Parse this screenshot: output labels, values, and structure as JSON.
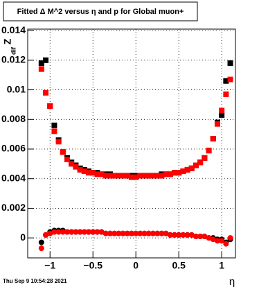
{
  "chart_data": {
    "type": "scatter",
    "title": "Fitted Δ M^2 versus η and p for Global muon+",
    "xlabel": "η",
    "ylabel": "Z",
    "ylabel_subscript": "dif",
    "footer": "Thu Sep  9 10:54:28 2021",
    "xlim": [
      -1.26,
      1.16
    ],
    "ylim": [
      -0.00135,
      0.0141
    ],
    "xticks": [
      {
        "value": -1,
        "label": "−1"
      },
      {
        "value": -0.5,
        "label": "−0.5"
      },
      0,
      0.5,
      1
    ],
    "yticks": [
      0,
      0.002,
      0.004,
      0.006,
      0.008,
      0.01,
      0.012,
      0.014
    ],
    "grid": true,
    "x": [
      -1.1,
      -1.05,
      -1.0,
      -0.95,
      -0.9,
      -0.85,
      -0.8,
      -0.75,
      -0.7,
      -0.65,
      -0.6,
      -0.55,
      -0.5,
      -0.45,
      -0.4,
      -0.35,
      -0.3,
      -0.25,
      -0.2,
      -0.15,
      -0.1,
      -0.05,
      0,
      0.05,
      0.1,
      0.15,
      0.2,
      0.25,
      0.3,
      0.35,
      0.4,
      0.45,
      0.5,
      0.55,
      0.6,
      0.65,
      0.7,
      0.75,
      0.8,
      0.85,
      0.9,
      0.95,
      1.0,
      1.05,
      1.1
    ],
    "series": [
      {
        "color": "#000000",
        "marker": "square",
        "values": [
          0.0118,
          0.012,
          0.0089,
          0.0076,
          0.0066,
          0.0058,
          0.0054,
          0.0051,
          0.0049,
          0.0047,
          0.0046,
          0.0045,
          0.0044,
          0.0044,
          0.0043,
          0.0043,
          0.0043,
          0.0042,
          0.0042,
          0.0042,
          0.0042,
          0.0042,
          0.0042,
          0.0042,
          0.0042,
          0.0042,
          0.0042,
          0.0042,
          0.0043,
          0.0043,
          0.0043,
          0.0044,
          0.0044,
          0.0045,
          0.0046,
          0.0047,
          0.0049,
          0.0051,
          0.0054,
          0.0059,
          0.0067,
          0.0078,
          0.0083,
          0.0106,
          0.0118
        ]
      },
      {
        "color": "#ff0000",
        "marker": "square",
        "values": [
          0.0114,
          0.0098,
          0.0089,
          0.0072,
          0.0065,
          0.0058,
          0.0053,
          0.005,
          0.0048,
          0.0046,
          0.0045,
          0.0044,
          0.0044,
          0.0043,
          0.0043,
          0.0042,
          0.0042,
          0.0042,
          0.0042,
          0.0042,
          0.0042,
          0.0041,
          0.0041,
          0.0042,
          0.0042,
          0.0042,
          0.0042,
          0.0042,
          0.0042,
          0.0043,
          0.0043,
          0.0044,
          0.0044,
          0.0045,
          0.0046,
          0.0047,
          0.0049,
          0.0051,
          0.0054,
          0.0059,
          0.0067,
          0.0077,
          0.0086,
          0.0097,
          0.0107
        ]
      },
      {
        "color": "#000000",
        "marker": "circle",
        "values": [
          -0.0003,
          0.0002,
          0.0004,
          0.0005,
          0.0005,
          0.0005,
          0.0004,
          0.0004,
          0.0004,
          0.0004,
          0.0004,
          0.0004,
          0.0004,
          0.0004,
          0.0004,
          0.0003,
          0.0003,
          0.0003,
          0.0003,
          0.0003,
          0.0003,
          0.0003,
          0.0003,
          0.0003,
          0.0003,
          0.0003,
          0.0003,
          0.0003,
          0.0003,
          0.0003,
          0.0002,
          0.0002,
          0.0002,
          0.0002,
          0.0002,
          0.0002,
          0.0001,
          0.0001,
          0.0001,
          0.0,
          0.0,
          -0.0001,
          -0.0001,
          -0.0003,
          -0.0001
        ]
      },
      {
        "color": "#ff0000",
        "marker": "circle",
        "values": [
          -0.0007,
          0.0002,
          0.0003,
          0.0004,
          0.0004,
          0.0004,
          0.0004,
          0.0004,
          0.0004,
          0.0004,
          0.0004,
          0.0004,
          0.0004,
          0.0004,
          0.0004,
          0.0003,
          0.0003,
          0.0003,
          0.0003,
          0.0003,
          0.0003,
          0.0003,
          0.0003,
          0.0003,
          0.0003,
          0.0003,
          0.0003,
          0.0003,
          0.0003,
          0.0003,
          0.0002,
          0.0002,
          0.0002,
          0.0002,
          0.0002,
          0.0002,
          0.0001,
          0.0001,
          0.0001,
          0.0,
          -0.0001,
          -0.0002,
          -0.0002,
          -0.0004,
          0.0
        ]
      }
    ]
  }
}
